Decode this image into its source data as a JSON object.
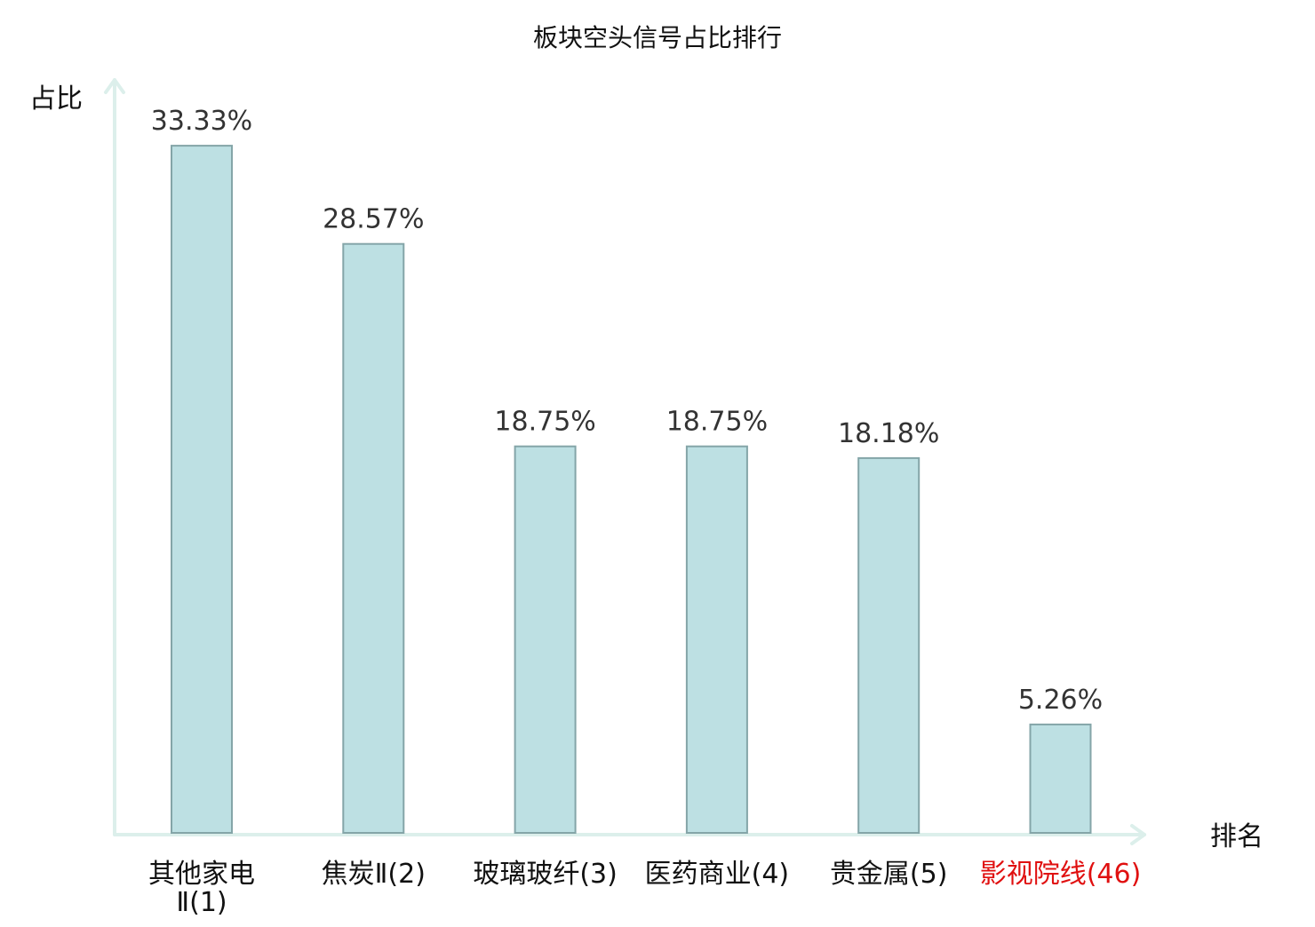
{
  "chart_data": {
    "type": "bar",
    "title": "板块空头信号占比排行",
    "ylabel": "占比",
    "xlabel": "排名",
    "categories": [
      [
        "其他家电",
        "Ⅱ(1)"
      ],
      [
        "焦炭Ⅱ(2)"
      ],
      [
        "玻璃玻纤(3)"
      ],
      [
        "医药商业(4)"
      ],
      [
        "贵金属(5)"
      ],
      [
        "影视院线(46)"
      ]
    ],
    "values": [
      33.33,
      28.57,
      18.75,
      18.75,
      18.18,
      5.26
    ],
    "value_labels": [
      "33.33%",
      "28.57%",
      "18.75%",
      "18.75%",
      "18.18%",
      "5.26%"
    ],
    "category_colors": [
      "#111111",
      "#111111",
      "#111111",
      "#111111",
      "#111111",
      "#e01010"
    ],
    "ylim": [
      0,
      34.8
    ],
    "grid": false,
    "legend": "none",
    "colors": {
      "bar_fill": "#bde0e3",
      "bar_stroke": "#84a5a8",
      "axis": "#dcefeb"
    }
  }
}
